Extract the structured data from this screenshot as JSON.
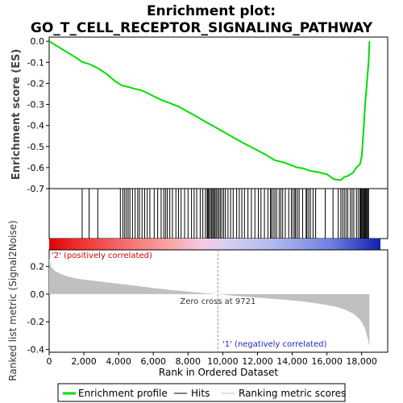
{
  "chart_data": {
    "type": "line",
    "title_line1": "Enrichment plot:",
    "title_line2": "GO_T_CELL_RECEPTOR_SIGNALING_PATHWAY",
    "es_ylabel": "Enrichment score (ES)",
    "metric_ylabel": "Ranked list metric (Signal2Noise)",
    "xlabel": "Rank in Ordered Dataset",
    "xlim": [
      0,
      19500
    ],
    "es_ylim": [
      -0.7,
      0.02
    ],
    "metric_ylim": [
      -0.42,
      0.32
    ],
    "x_ticks": [
      0,
      2000,
      4000,
      6000,
      8000,
      10000,
      12000,
      14000,
      16000,
      18000
    ],
    "x_tick_labels": [
      "0",
      "2,000",
      "4,000",
      "6,000",
      "8,000",
      "10,000",
      "12,000",
      "14,000",
      "16,000",
      "18,000"
    ],
    "es_ticks": [
      0.0,
      -0.1,
      -0.2,
      -0.3,
      -0.4,
      -0.5,
      -0.6,
      -0.7
    ],
    "es_tick_labels": [
      "0.0",
      "-0.1",
      "-0.2",
      "-0.3",
      "-0.4",
      "-0.5",
      "-0.6",
      "-0.7"
    ],
    "metric_ticks": [
      0.2,
      0.0,
      -0.2,
      -0.4
    ],
    "metric_tick_labels": [
      "0.2",
      "0.0",
      "-0.2",
      "-0.4"
    ],
    "es_series": {
      "name": "Enrichment profile",
      "color": "#00dd00",
      "x": [
        0,
        500,
        1000,
        1500,
        1900,
        2300,
        2800,
        3300,
        3800,
        4200,
        4600,
        4900,
        5200,
        5500,
        6000,
        6500,
        7000,
        7500,
        8000,
        8500,
        9000,
        9500,
        10000,
        10500,
        11000,
        11500,
        12000,
        12500,
        13000,
        13500,
        14000,
        14300,
        14600,
        15000,
        15500,
        16000,
        16400,
        16800,
        17000,
        17200,
        17500,
        17700,
        17900,
        18000,
        18100,
        18200,
        18300,
        18400,
        18450
      ],
      "y": [
        0.0,
        -0.025,
        -0.05,
        -0.075,
        -0.098,
        -0.108,
        -0.128,
        -0.155,
        -0.19,
        -0.21,
        -0.218,
        -0.226,
        -0.23,
        -0.24,
        -0.26,
        -0.28,
        -0.295,
        -0.312,
        -0.335,
        -0.358,
        -0.382,
        -0.405,
        -0.428,
        -0.452,
        -0.475,
        -0.497,
        -0.518,
        -0.54,
        -0.565,
        -0.575,
        -0.59,
        -0.6,
        -0.603,
        -0.615,
        -0.622,
        -0.632,
        -0.655,
        -0.66,
        -0.645,
        -0.64,
        -0.625,
        -0.6,
        -0.585,
        -0.55,
        -0.44,
        -0.3,
        -0.2,
        -0.1,
        0.0
      ]
    },
    "hits": [
      1900,
      2300,
      2800,
      4100,
      4250,
      4350,
      4450,
      4550,
      4650,
      4800,
      4950,
      5100,
      5200,
      5350,
      5500,
      5650,
      5800,
      6050,
      6250,
      6450,
      6600,
      6700,
      6800,
      6950,
      7100,
      7300,
      7450,
      7600,
      7800,
      8000,
      8200,
      8350,
      8500,
      8700,
      8850,
      9000,
      9100,
      9150,
      9200,
      9280,
      9350,
      9420,
      9480,
      9550,
      9620,
      9700,
      9780,
      9860,
      9950,
      10050,
      10150,
      10300,
      10450,
      10600,
      10800,
      10950,
      11100,
      11250,
      11450,
      11650,
      11850,
      12050,
      12200,
      12400,
      12600,
      12750,
      12800,
      12900,
      13000,
      13100,
      13250,
      13350,
      13450,
      13600,
      13800,
      13950,
      14050,
      14150,
      14200,
      14300,
      14400,
      14600,
      14800,
      14850,
      14950,
      15050,
      15200,
      15350,
      15900,
      16350,
      16650,
      16800,
      16900,
      17000,
      17100,
      17200,
      17350,
      17450,
      17550,
      17700,
      17800,
      17900,
      17950,
      18000,
      18050,
      18100,
      18150,
      18200,
      18250,
      18300,
      18350,
      18400
    ],
    "metric_series": {
      "name": "Ranking metric scores",
      "color": "#c0c0c0",
      "x": [
        0,
        100,
        300,
        600,
        1000,
        1500,
        2000,
        3000,
        4000,
        5000,
        6000,
        7000,
        8000,
        9000,
        9721,
        10500,
        11500,
        12500,
        13500,
        14500,
        15500,
        16500,
        17000,
        17500,
        17800,
        18000,
        18200,
        18350,
        18450
      ],
      "y": [
        0.26,
        0.2,
        0.17,
        0.15,
        0.13,
        0.115,
        0.105,
        0.09,
        0.075,
        0.06,
        0.045,
        0.03,
        0.018,
        0.006,
        0.0,
        -0.01,
        -0.02,
        -0.03,
        -0.04,
        -0.052,
        -0.068,
        -0.09,
        -0.11,
        -0.14,
        -0.17,
        -0.2,
        -0.25,
        -0.32,
        -0.38
      ]
    },
    "zero_cross_label": "Zero cross at 9721",
    "zero_cross_x": 9721,
    "positive_label": "'2' (positively correlated)",
    "negative_label": "'1' (negatively correlated)",
    "legend": [
      {
        "label": "Enrichment profile",
        "color": "#00dd00"
      },
      {
        "label": "Hits",
        "color": "#000000"
      },
      {
        "label": "Ranking metric scores",
        "color": "#c0c0c0"
      }
    ],
    "legend_placement": "bottom",
    "grid": false
  }
}
